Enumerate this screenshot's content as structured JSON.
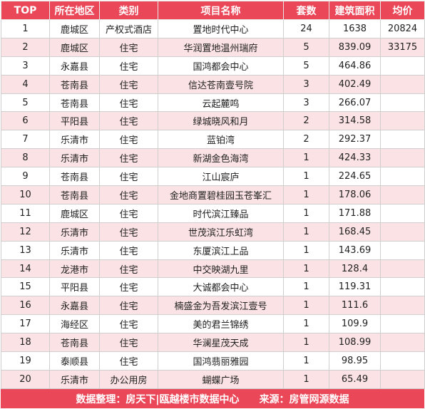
{
  "headers": [
    "TOP",
    "所在地区",
    "类别",
    "项目名称",
    "套数",
    "建筑面积",
    "均价"
  ],
  "rows": [
    [
      "1",
      "鹿城区",
      "产权式酒店",
      "置地时代中心",
      "24",
      "1638",
      "20824"
    ],
    [
      "2",
      "鹿城区",
      "住宅",
      "华润置地温州瑞府",
      "5",
      "839.09",
      "33175"
    ],
    [
      "3",
      "永嘉县",
      "住宅",
      "国鸿都会中心",
      "5",
      "464.86",
      ""
    ],
    [
      "4",
      "苍南县",
      "住宅",
      "信达苍南壹号院",
      "3",
      "402.49",
      ""
    ],
    [
      "5",
      "苍南县",
      "住宅",
      "云起麓鸣",
      "3",
      "266.07",
      ""
    ],
    [
      "6",
      "平阳县",
      "住宅",
      "绿城晓风和月",
      "2",
      "314.58",
      ""
    ],
    [
      "7",
      "乐清市",
      "住宅",
      "蓝铂湾",
      "2",
      "292.37",
      ""
    ],
    [
      "8",
      "乐清市",
      "住宅",
      "新湖金色海湾",
      "1",
      "424.33",
      ""
    ],
    [
      "9",
      "苍南县",
      "住宅",
      "江山宸庐",
      "1",
      "224.65",
      ""
    ],
    [
      "10",
      "苍南县",
      "住宅",
      "金地商置碧桂园玉苍峯汇",
      "1",
      "178.06",
      ""
    ],
    [
      "11",
      "鹿城区",
      "住宅",
      "时代滨江臻品",
      "1",
      "171.88",
      ""
    ],
    [
      "12",
      "乐清市",
      "住宅",
      "世茂滨江乐虹湾",
      "1",
      "168.45",
      ""
    ],
    [
      "13",
      "乐清市",
      "住宅",
      "东厦滨江上品",
      "1",
      "143.69",
      ""
    ],
    [
      "14",
      "龙港市",
      "住宅",
      "中交映湖九里",
      "1",
      "128.4",
      ""
    ],
    [
      "15",
      "平阳县",
      "住宅",
      "大诚都会中心",
      "1",
      "119.31",
      ""
    ],
    [
      "16",
      "永嘉县",
      "住宅",
      "楠盛金为吾发滨江壹号",
      "1",
      "111.6",
      ""
    ],
    [
      "17",
      "海经区",
      "住宅",
      "美的君兰锦绣",
      "1",
      "109.9",
      ""
    ],
    [
      "18",
      "苍南县",
      "住宅",
      "华澜星茂天成",
      "1",
      "108.99",
      ""
    ],
    [
      "19",
      "泰顺县",
      "住宅",
      "国鸿翡丽雅园",
      "1",
      "98.95",
      ""
    ],
    [
      "20",
      "乐清市",
      "办公用房",
      "蝴蝶广场",
      "1",
      "65.49",
      ""
    ]
  ],
  "footer": {
    "left": "数据整理：房天下|瓯越楼市数据中心",
    "right": "来源：房管网源数据"
  },
  "colors": {
    "header_bg": "#ea4758",
    "alt_row_bg": "#fbe2e4"
  }
}
